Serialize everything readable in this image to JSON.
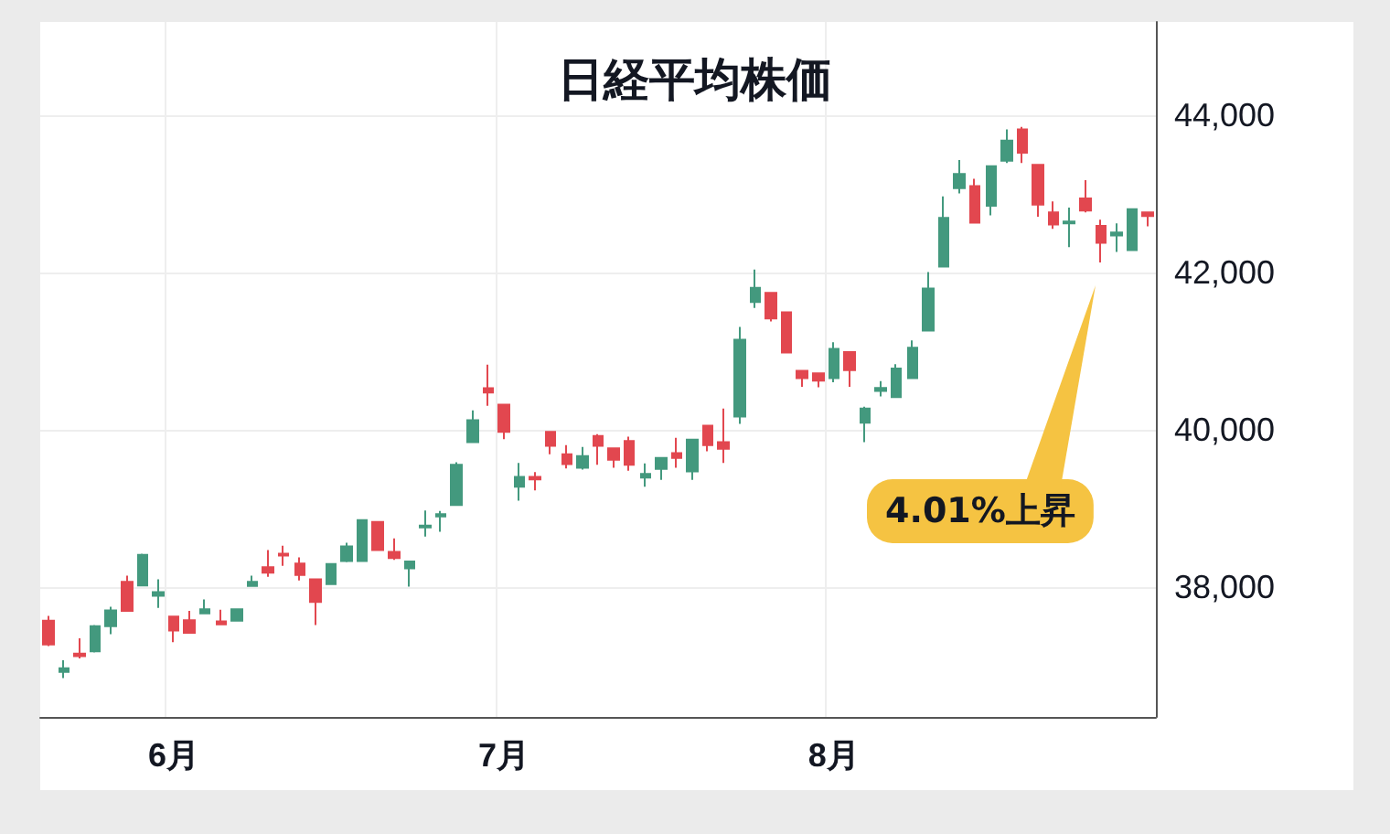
{
  "chart_data": {
    "type": "candlestick",
    "title": "日経平均株価",
    "categories": [
      null,
      null,
      null,
      null,
      null,
      null,
      null,
      null,
      "6月",
      null,
      null,
      null,
      null,
      null,
      null,
      null,
      null,
      null,
      null,
      null,
      null,
      null,
      null,
      null,
      null,
      null,
      null,
      null,
      null,
      "7月",
      null,
      null,
      null,
      null,
      null,
      null,
      null,
      null,
      null,
      null,
      null,
      null,
      null,
      null,
      null,
      null,
      null,
      null,
      null,
      null,
      "8月",
      null,
      null,
      null,
      null,
      null,
      null,
      null,
      null,
      null,
      null,
      null,
      null,
      null,
      null,
      null,
      null,
      null,
      null,
      null,
      null
    ],
    "ohlc": [
      [
        37575,
        37636,
        37250,
        37273
      ],
      [
        36923,
        37070,
        36844,
        36970
      ],
      [
        37155,
        37349,
        37093,
        37123
      ],
      [
        37186,
        37520,
        37170,
        37505
      ],
      [
        37505,
        37751,
        37402,
        37705
      ],
      [
        38070,
        38147,
        37698,
        37698
      ],
      [
        38023,
        38426,
        38023,
        38412
      ],
      [
        37891,
        38100,
        37737,
        37937
      ],
      [
        37628,
        37628,
        37302,
        37450
      ],
      [
        37581,
        37698,
        37419,
        37419
      ],
      [
        37667,
        37844,
        37667,
        37721
      ],
      [
        37565,
        37714,
        37528,
        37528
      ],
      [
        37574,
        37721,
        37574,
        37721
      ],
      [
        38016,
        38147,
        38016,
        38070
      ],
      [
        38256,
        38472,
        38132,
        38186
      ],
      [
        38426,
        38528,
        38272,
        38403
      ],
      [
        38302,
        38379,
        38086,
        38156
      ],
      [
        38100,
        38100,
        37519,
        37814
      ],
      [
        38040,
        38295,
        38040,
        38295
      ],
      [
        38333,
        38565,
        38318,
        38519
      ],
      [
        38333,
        38854,
        38333,
        38854
      ],
      [
        38830,
        38830,
        38472,
        38472
      ],
      [
        38449,
        38621,
        38349,
        38372
      ],
      [
        38240,
        38326,
        38007,
        38326
      ],
      [
        38760,
        38977,
        38644,
        38784
      ],
      [
        38900,
        38970,
        38705,
        38930
      ],
      [
        39047,
        39589,
        39047,
        39558
      ],
      [
        39844,
        40249,
        39844,
        40123
      ],
      [
        40533,
        40830,
        40307,
        40477
      ],
      [
        40322,
        40322,
        39884,
        39977
      ],
      [
        39279,
        39582,
        39101,
        39403
      ],
      [
        39403,
        39465,
        39233,
        39372
      ],
      [
        39977,
        39977,
        39691,
        39798
      ],
      [
        39691,
        39807,
        39512,
        39565
      ],
      [
        39519,
        39784,
        39495,
        39668
      ],
      [
        39924,
        39947,
        39558,
        39798
      ],
      [
        39768,
        39768,
        39519,
        39621
      ],
      [
        39861,
        39914,
        39482,
        39558
      ],
      [
        39396,
        39575,
        39279,
        39442
      ],
      [
        39505,
        39644,
        39365,
        39644
      ],
      [
        39705,
        39900,
        39519,
        39644
      ],
      [
        39474,
        39877,
        39365,
        39877
      ],
      [
        40054,
        40054,
        39730,
        39807
      ],
      [
        39845,
        40273,
        39582,
        39761
      ],
      [
        40170,
        41311,
        40077,
        41147
      ],
      [
        41628,
        42040,
        41551,
        41807
      ],
      [
        41744,
        41744,
        41380,
        41419
      ],
      [
        41496,
        41496,
        40985,
        40985
      ],
      [
        40752,
        40752,
        40550,
        40659
      ],
      [
        40722,
        40722,
        40543,
        40628
      ],
      [
        40659,
        41116,
        40607,
        41031
      ],
      [
        40992,
        40992,
        40550,
        40760
      ],
      [
        40093,
        40296,
        39845,
        40272
      ],
      [
        40496,
        40621,
        40426,
        40535
      ],
      [
        40419,
        40837,
        40419,
        40783
      ],
      [
        40659,
        41140,
        40659,
        41047
      ],
      [
        41264,
        42008,
        41264,
        41798
      ],
      [
        42078,
        42970,
        42078,
        42698
      ],
      [
        43077,
        43434,
        43008,
        43256
      ],
      [
        43101,
        43194,
        42636,
        42636
      ],
      [
        42853,
        43356,
        42729,
        43356
      ],
      [
        43426,
        43822,
        43395,
        43682
      ],
      [
        43822,
        43854,
        43395,
        43527
      ],
      [
        43372,
        43372,
        42713,
        42868
      ],
      [
        42768,
        42908,
        42558,
        42613
      ],
      [
        42628,
        42830,
        42326,
        42651
      ],
      [
        42946,
        43179,
        42768,
        42791
      ],
      [
        42597,
        42675,
        42132,
        42380
      ],
      [
        42473,
        42629,
        42264,
        42511
      ],
      [
        42288,
        42807,
        42288,
        42807
      ],
      [
        42768,
        42768,
        42590,
        42722
      ]
    ],
    "colors": [
      "#e2474f",
      "#43997e",
      "#e2474f",
      "#43997e",
      "#43997e",
      "#e2474f",
      "#43997e",
      "#43997e",
      "#e2474f",
      "#e2474f",
      "#43997e",
      "#e2474f",
      "#43997e",
      "#43997e",
      "#e2474f",
      "#e2474f",
      "#e2474f",
      "#e2474f",
      "#43997e",
      "#43997e",
      "#43997e",
      "#e2474f",
      "#e2474f",
      "#43997e",
      "#43997e",
      "#43997e",
      "#43997e",
      "#43997e",
      "#e2474f",
      "#e2474f",
      "#43997e",
      "#e2474f",
      "#e2474f",
      "#e2474f",
      "#43997e",
      "#e2474f",
      "#e2474f",
      "#e2474f",
      "#43997e",
      "#43997e",
      "#e2474f",
      "#43997e",
      "#e2474f",
      "#e2474f",
      "#43997e",
      "#43997e",
      "#e2474f",
      "#e2474f",
      "#e2474f",
      "#e2474f",
      "#43997e",
      "#e2474f",
      "#43997e",
      "#43997e",
      "#43997e",
      "#43997e",
      "#43997e",
      "#43997e",
      "#43997e",
      "#e2474f",
      "#43997e",
      "#43997e",
      "#e2474f",
      "#e2474f",
      "#e2474f",
      "#43997e",
      "#e2474f",
      "#e2474f",
      "#43997e",
      "#43997e",
      "#e2474f"
    ],
    "ylim": [
      36350,
      45190
    ],
    "yticks": [
      {
        "value": 38000,
        "label": "38,000"
      },
      {
        "value": 40000,
        "label": "40,000"
      },
      {
        "value": 42000,
        "label": "42,000"
      },
      {
        "value": 44000,
        "label": "44,000"
      }
    ],
    "grid": true,
    "annotations": [
      "4.01%上昇"
    ]
  }
}
